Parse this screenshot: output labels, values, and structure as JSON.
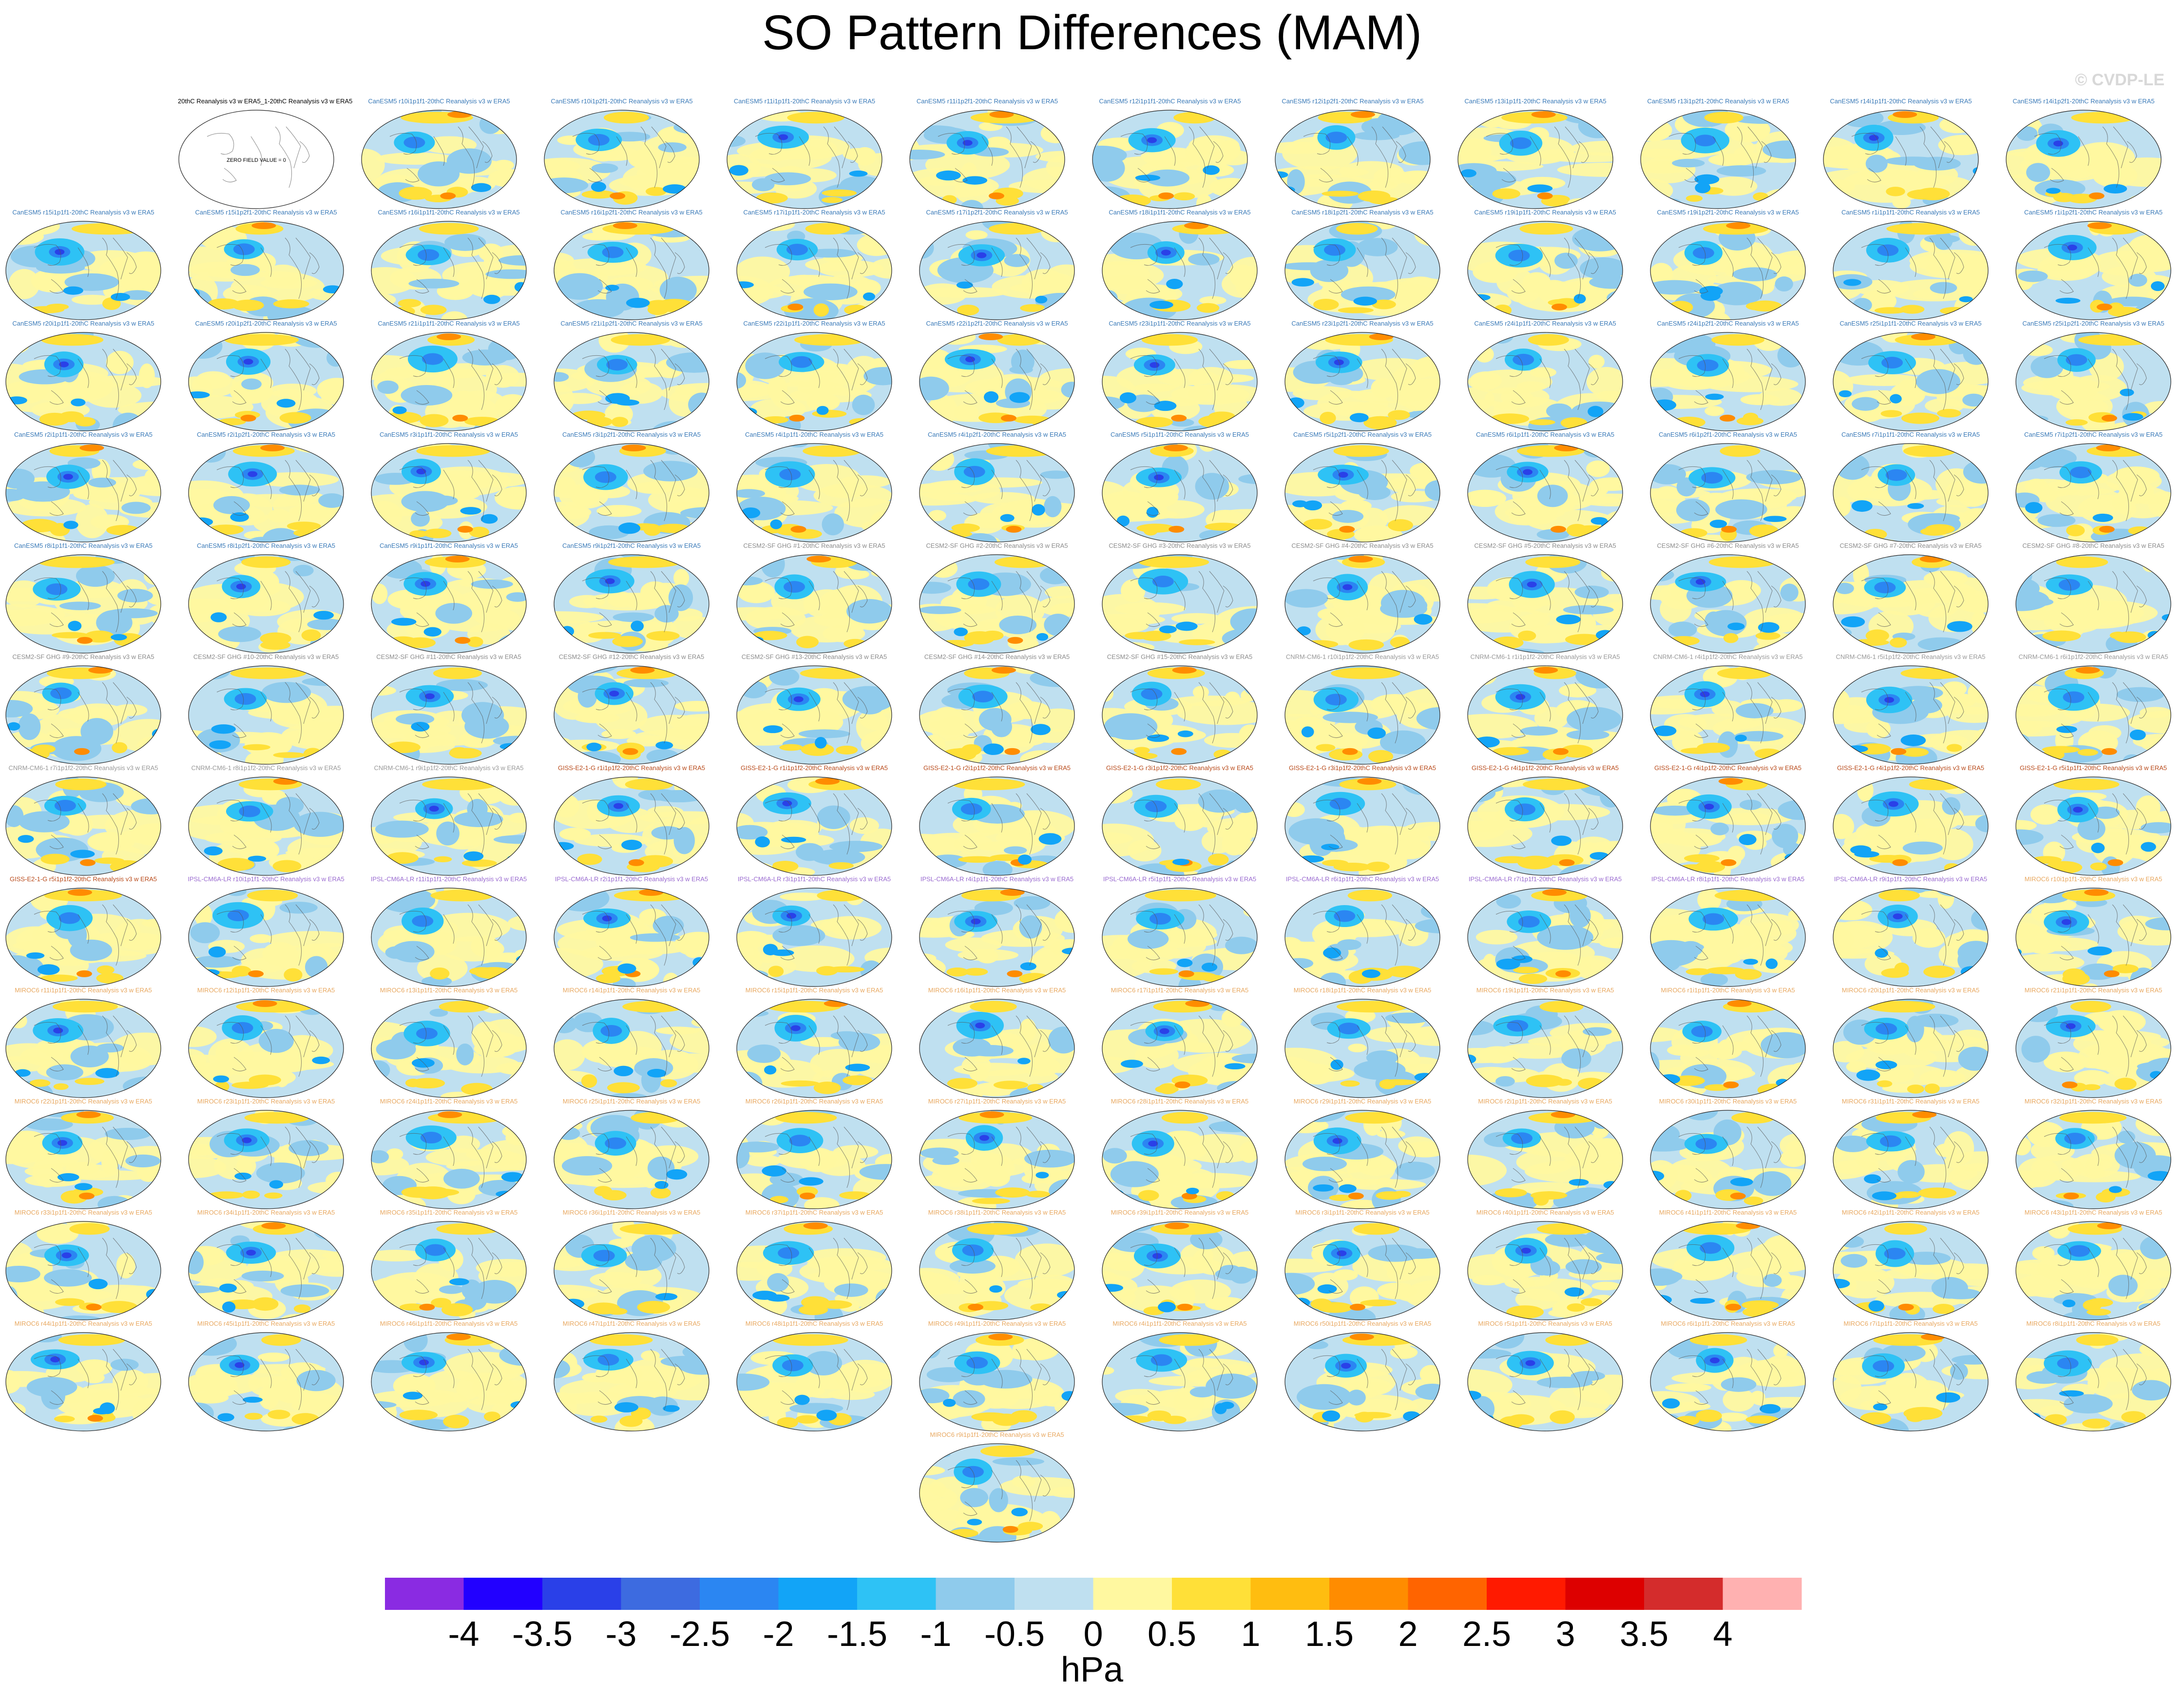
{
  "title": "SO Pattern Differences (MAM)",
  "watermark": "© CVDP-LE",
  "chart_data": {
    "type": "map-panels",
    "title": "SO Pattern Differences (MAM)",
    "units": "hPa",
    "colorbar": {
      "colors": [
        "#8a2be2",
        "#2200ff",
        "#2a40e8",
        "#3d6be0",
        "#2b86f2",
        "#12a4f7",
        "#2ec2f5",
        "#8fcbec",
        "#bfe0f0",
        "#fff8a0",
        "#ffe038",
        "#ffbd10",
        "#ff8c00",
        "#ff6400",
        "#ff1a00",
        "#dd0000",
        "#d42c2c",
        "#ffb1b1"
      ],
      "tick_labels": [
        "-4",
        "-3.5",
        "-3",
        "-2.5",
        "-2",
        "-1.5",
        "-1",
        "-0.5",
        "0",
        "0.5",
        "1",
        "1.5",
        "2",
        "2.5",
        "3",
        "3.5",
        "4"
      ]
    },
    "empty_panel_title": "20thC Reanalysis v3 w ERA5_1-20thC Reanalysis v3 w ERA5",
    "empty_panel_label": "ZERO FIELD VALUE = 0",
    "panels": [
      {
        "t": "CanESM5 r10i1p1f1-20thC Reanalysis v3 w ERA5",
        "g": "CanESM5",
        "s": 3
      },
      {
        "t": "CanESM5 r10i1p2f1-20thC Reanalysis v3 w ERA5",
        "g": "CanESM5",
        "s": 5
      },
      {
        "t": "CanESM5 r11i1p1f1-20thC Reanalysis v3 w ERA5",
        "g": "CanESM5",
        "s": 7
      },
      {
        "t": "CanESM5 r11i1p2f1-20thC Reanalysis v3 w ERA5",
        "g": "CanESM5",
        "s": 9
      },
      {
        "t": "CanESM5 r12i1p1f1-20thC Reanalysis v3 w ERA5",
        "g": "CanESM5",
        "s": 11
      },
      {
        "t": "CanESM5 r12i1p2f1-20thC Reanalysis v3 w ERA5",
        "g": "CanESM5",
        "s": 13
      },
      {
        "t": "CanESM5 r13i1p1f1-20thC Reanalysis v3 w ERA5",
        "g": "CanESM5",
        "s": 15
      },
      {
        "t": "CanESM5 r13i1p2f1-20thC Reanalysis v3 w ERA5",
        "g": "CanESM5",
        "s": 17
      },
      {
        "t": "CanESM5 r14i1p1f1-20thC Reanalysis v3 w ERA5",
        "g": "CanESM5",
        "s": 19
      },
      {
        "t": "CanESM5 r14i1p2f1-20thC Reanalysis v3 w ERA5",
        "g": "CanESM5",
        "s": 21
      },
      {
        "t": "CanESM5 r15i1p1f1-20thC Reanalysis v3 w ERA5",
        "g": "CanESM5",
        "s": 23
      },
      {
        "t": "CanESM5 r15i1p2f1-20thC Reanalysis v3 w ERA5",
        "g": "CanESM5",
        "s": 25
      },
      {
        "t": "CanESM5 r16i1p1f1-20thC Reanalysis v3 w ERA5",
        "g": "CanESM5",
        "s": 27
      },
      {
        "t": "CanESM5 r16i1p2f1-20thC Reanalysis v3 w ERA5",
        "g": "CanESM5",
        "s": 29
      },
      {
        "t": "CanESM5 r17i1p1f1-20thC Reanalysis v3 w ERA5",
        "g": "CanESM5",
        "s": 31
      },
      {
        "t": "CanESM5 r17i1p2f1-20thC Reanalysis v3 w ERA5",
        "g": "CanESM5",
        "s": 33
      },
      {
        "t": "CanESM5 r18i1p1f1-20thC Reanalysis v3 w ERA5",
        "g": "CanESM5",
        "s": 35
      },
      {
        "t": "CanESM5 r18i1p2f1-20thC Reanalysis v3 w ERA5",
        "g": "CanESM5",
        "s": 37
      },
      {
        "t": "CanESM5 r19i1p1f1-20thC Reanalysis v3 w ERA5",
        "g": "CanESM5",
        "s": 39
      },
      {
        "t": "CanESM5 r19i1p2f1-20thC Reanalysis v3 w ERA5",
        "g": "CanESM5",
        "s": 41
      },
      {
        "t": "CanESM5 r1i1p1f1-20thC Reanalysis v3 w ERA5",
        "g": "CanESM5",
        "s": 43
      },
      {
        "t": "CanESM5 r1i1p2f1-20thC Reanalysis v3 w ERA5",
        "g": "CanESM5",
        "s": 45
      },
      {
        "t": "CanESM5 r20i1p1f1-20thC Reanalysis v3 w ERA5",
        "g": "CanESM5",
        "s": 47
      },
      {
        "t": "CanESM5 r20i1p2f1-20thC Reanalysis v3 w ERA5",
        "g": "CanESM5",
        "s": 49
      },
      {
        "t": "CanESM5 r21i1p1f1-20thC Reanalysis v3 w ERA5",
        "g": "CanESM5",
        "s": 51
      },
      {
        "t": "CanESM5 r21i1p2f1-20thC Reanalysis v3 w ERA5",
        "g": "CanESM5",
        "s": 53
      },
      {
        "t": "CanESM5 r22i1p1f1-20thC Reanalysis v3 w ERA5",
        "g": "CanESM5",
        "s": 55
      },
      {
        "t": "CanESM5 r22i1p2f1-20thC Reanalysis v3 w ERA5",
        "g": "CanESM5",
        "s": 57
      },
      {
        "t": "CanESM5 r23i1p1f1-20thC Reanalysis v3 w ERA5",
        "g": "CanESM5",
        "s": 59
      },
      {
        "t": "CanESM5 r23i1p2f1-20thC Reanalysis v3 w ERA5",
        "g": "CanESM5",
        "s": 61
      },
      {
        "t": "CanESM5 r24i1p1f1-20thC Reanalysis v3 w ERA5",
        "g": "CanESM5",
        "s": 63
      },
      {
        "t": "CanESM5 r24i1p2f1-20thC Reanalysis v3 w ERA5",
        "g": "CanESM5",
        "s": 65
      },
      {
        "t": "CanESM5 r25i1p1f1-20thC Reanalysis v3 w ERA5",
        "g": "CanESM5",
        "s": 67
      },
      {
        "t": "CanESM5 r25i1p2f1-20thC Reanalysis v3 w ERA5",
        "g": "CanESM5",
        "s": 69
      },
      {
        "t": "CanESM5 r2i1p1f1-20thC Reanalysis v3 w ERA5",
        "g": "CanESM5",
        "s": 71
      },
      {
        "t": "CanESM5 r2i1p2f1-20thC Reanalysis v3 w ERA5",
        "g": "CanESM5",
        "s": 73
      },
      {
        "t": "CanESM5 r3i1p1f1-20thC Reanalysis v3 w ERA5",
        "g": "CanESM5",
        "s": 75
      },
      {
        "t": "CanESM5 r3i1p2f1-20thC Reanalysis v3 w ERA5",
        "g": "CanESM5",
        "s": 77
      },
      {
        "t": "CanESM5 r4i1p1f1-20thC Reanalysis v3 w ERA5",
        "g": "CanESM5",
        "s": 79
      },
      {
        "t": "CanESM5 r4i1p2f1-20thC Reanalysis v3 w ERA5",
        "g": "CanESM5",
        "s": 81
      },
      {
        "t": "CanESM5 r5i1p1f1-20thC Reanalysis v3 w ERA5",
        "g": "CanESM5",
        "s": 83
      },
      {
        "t": "CanESM5 r5i1p2f1-20thC Reanalysis v3 w ERA5",
        "g": "CanESM5",
        "s": 85
      },
      {
        "t": "CanESM5 r6i1p1f1-20thC Reanalysis v3 w ERA5",
        "g": "CanESM5",
        "s": 87
      },
      {
        "t": "CanESM5 r6i1p2f1-20thC Reanalysis v3 w ERA5",
        "g": "CanESM5",
        "s": 89
      },
      {
        "t": "CanESM5 r7i1p1f1-20thC Reanalysis v3 w ERA5",
        "g": "CanESM5",
        "s": 91
      },
      {
        "t": "CanESM5 r7i1p2f1-20thC Reanalysis v3 w ERA5",
        "g": "CanESM5",
        "s": 93
      },
      {
        "t": "CanESM5 r8i1p1f1-20thC Reanalysis v3 w ERA5",
        "g": "CanESM5",
        "s": 95
      },
      {
        "t": "CanESM5 r8i1p2f1-20thC Reanalysis v3 w ERA5",
        "g": "CanESM5",
        "s": 97
      },
      {
        "t": "CanESM5 r9i1p1f1-20thC Reanalysis v3 w ERA5",
        "g": "CanESM5",
        "s": 99
      },
      {
        "t": "CanESM5 r9i1p2f1-20thC Reanalysis v3 w ERA5",
        "g": "CanESM5",
        "s": 101
      },
      {
        "t": "CESM2-SF GHG #1-20thC Reanalysis v3 w ERA5",
        "g": "CESM2",
        "s": 103
      },
      {
        "t": "CESM2-SF GHG #2-20thC Reanalysis v3 w ERA5",
        "g": "CESM2",
        "s": 105
      },
      {
        "t": "CESM2-SF GHG #3-20thC Reanalysis v3 w ERA5",
        "g": "CESM2",
        "s": 107
      },
      {
        "t": "CESM2-SF GHG #4-20thC Reanalysis v3 w ERA5",
        "g": "CESM2",
        "s": 109
      },
      {
        "t": "CESM2-SF GHG #5-20thC Reanalysis v3 w ERA5",
        "g": "CESM2",
        "s": 111
      },
      {
        "t": "CESM2-SF GHG #6-20thC Reanalysis v3 w ERA5",
        "g": "CESM2",
        "s": 113
      },
      {
        "t": "CESM2-SF GHG #7-20thC Reanalysis v3 w ERA5",
        "g": "CESM2",
        "s": 115
      },
      {
        "t": "CESM2-SF GHG #8-20thC Reanalysis v3 w ERA5",
        "g": "CESM2",
        "s": 117
      },
      {
        "t": "CESM2-SF GHG #9-20thC Reanalysis v3 w ERA5",
        "g": "CESM2",
        "s": 119
      },
      {
        "t": "CESM2-SF GHG #10-20thC Reanalysis v3 w ERA5",
        "g": "CESM2",
        "s": 121
      },
      {
        "t": "CESM2-SF GHG #11-20thC Reanalysis v3 w ERA5",
        "g": "CESM2",
        "s": 123
      },
      {
        "t": "CESM2-SF GHG #12-20thC Reanalysis v3 w ERA5",
        "g": "CESM2",
        "s": 125
      },
      {
        "t": "CESM2-SF GHG #13-20thC Reanalysis v3 w ERA5",
        "g": "CESM2",
        "s": 127
      },
      {
        "t": "CESM2-SF GHG #14-20thC Reanalysis v3 w ERA5",
        "g": "CESM2",
        "s": 129
      },
      {
        "t": "CESM2-SF GHG #15-20thC Reanalysis v3 w ERA5",
        "g": "CESM2",
        "s": 131
      },
      {
        "t": "CNRM-CM6-1 r10i1p1f2-20thC Reanalysis v3 w ERA5",
        "g": "CNRM",
        "s": 133
      },
      {
        "t": "CNRM-CM6-1 r1i1p1f2-20thC Reanalysis v3 w ERA5",
        "g": "CNRM",
        "s": 135
      },
      {
        "t": "CNRM-CM6-1 r4i1p1f2-20thC Reanalysis v3 w ERA5",
        "g": "CNRM",
        "s": 137
      },
      {
        "t": "CNRM-CM6-1 r5i1p1f2-20thC Reanalysis v3 w ERA5",
        "g": "CNRM",
        "s": 139
      },
      {
        "t": "CNRM-CM6-1 r6i1p1f2-20thC Reanalysis v3 w ERA5",
        "g": "CNRM",
        "s": 141
      },
      {
        "t": "CNRM-CM6-1 r7i1p1f2-20thC Reanalysis v3 w ERA5",
        "g": "CNRM",
        "s": 143
      },
      {
        "t": "CNRM-CM6-1 r8i1p1f2-20thC Reanalysis v3 w ERA5",
        "g": "CNRM",
        "s": 145
      },
      {
        "t": "CNRM-CM6-1 r9i1p1f2-20thC Reanalysis v3 w ERA5",
        "g": "CNRM",
        "s": 147
      },
      {
        "t": "GISS-E2-1-G r1i1p1f2-20thC Reanalysis v3 w ERA5",
        "g": "GISS",
        "s": 149
      },
      {
        "t": "GISS-E2-1-G r1i1p1f2-20thC Reanalysis v3 w ERA5",
        "g": "GISS",
        "s": 151
      },
      {
        "t": "GISS-E2-1-G r2i1p1f2-20thC Reanalysis v3 w ERA5",
        "g": "GISS",
        "s": 153
      },
      {
        "t": "GISS-E2-1-G r3i1p1f2-20thC Reanalysis v3 w ERA5",
        "g": "GISS",
        "s": 155
      },
      {
        "t": "GISS-E2-1-G r3i1p1f2-20thC Reanalysis v3 w ERA5",
        "g": "GISS",
        "s": 157
      },
      {
        "t": "GISS-E2-1-G r4i1p1f2-20thC Reanalysis v3 w ERA5",
        "g": "GISS",
        "s": 159
      },
      {
        "t": "GISS-E2-1-G r4i1p1f2-20thC Reanalysis v3 w ERA5",
        "g": "GISS",
        "s": 161
      },
      {
        "t": "GISS-E2-1-G r4i1p1f2-20thC Reanalysis v3 w ERA5",
        "g": "GISS",
        "s": 163
      },
      {
        "t": "GISS-E2-1-G r5i1p1f1-20thC Reanalysis v3 w ERA5",
        "g": "GISS",
        "s": 165
      },
      {
        "t": "GISS-E2-1-G r5i1p1f2-20thC Reanalysis v3 w ERA5",
        "g": "GISS",
        "s": 167
      },
      {
        "t": "IPSL-CM6A-LR r10i1p1f1-20thC Reanalysis v3 w ERA5",
        "g": "IPSL",
        "s": 169
      },
      {
        "t": "IPSL-CM6A-LR r11i1p1f1-20thC Reanalysis v3 w ERA5",
        "g": "IPSL",
        "s": 171
      },
      {
        "t": "IPSL-CM6A-LR r2i1p1f1-20thC Reanalysis v3 w ERA5",
        "g": "IPSL",
        "s": 173
      },
      {
        "t": "IPSL-CM6A-LR r3i1p1f1-20thC Reanalysis v3 w ERA5",
        "g": "IPSL",
        "s": 175
      },
      {
        "t": "IPSL-CM6A-LR r4i1p1f1-20thC Reanalysis v3 w ERA5",
        "g": "IPSL",
        "s": 177
      },
      {
        "t": "IPSL-CM6A-LR r5i1p1f1-20thC Reanalysis v3 w ERA5",
        "g": "IPSL",
        "s": 179
      },
      {
        "t": "IPSL-CM6A-LR r6i1p1f1-20thC Reanalysis v3 w ERA5",
        "g": "IPSL",
        "s": 181
      },
      {
        "t": "IPSL-CM6A-LR r7i1p1f1-20thC Reanalysis v3 w ERA5",
        "g": "IPSL",
        "s": 183
      },
      {
        "t": "IPSL-CM6A-LR r8i1p1f1-20thC Reanalysis v3 w ERA5",
        "g": "IPSL",
        "s": 185
      },
      {
        "t": "IPSL-CM6A-LR r9i1p1f1-20thC Reanalysis v3 w ERA5",
        "g": "IPSL",
        "s": 187
      },
      {
        "t": "MIROC6 r10i1p1f1-20thC Reanalysis v3 w ERA5",
        "g": "MIROC6",
        "s": 189
      },
      {
        "t": "MIROC6 r11i1p1f1-20thC Reanalysis v3 w ERA5",
        "g": "MIROC6",
        "s": 191
      },
      {
        "t": "MIROC6 r12i1p1f1-20thC Reanalysis v3 w ERA5",
        "g": "MIROC6",
        "s": 193
      },
      {
        "t": "MIROC6 r13i1p1f1-20thC Reanalysis v3 w ERA5",
        "g": "MIROC6",
        "s": 195
      },
      {
        "t": "MIROC6 r14i1p1f1-20thC Reanalysis v3 w ERA5",
        "g": "MIROC6",
        "s": 197
      },
      {
        "t": "MIROC6 r15i1p1f1-20thC Reanalysis v3 w ERA5",
        "g": "MIROC6",
        "s": 199
      },
      {
        "t": "MIROC6 r16i1p1f1-20thC Reanalysis v3 w ERA5",
        "g": "MIROC6",
        "s": 201
      },
      {
        "t": "MIROC6 r17i1p1f1-20thC Reanalysis v3 w ERA5",
        "g": "MIROC6",
        "s": 203
      },
      {
        "t": "MIROC6 r18i1p1f1-20thC Reanalysis v3 w ERA5",
        "g": "MIROC6",
        "s": 205
      },
      {
        "t": "MIROC6 r19i1p1f1-20thC Reanalysis v3 w ERA5",
        "g": "MIROC6",
        "s": 207
      },
      {
        "t": "MIROC6 r1i1p1f1-20thC Reanalysis v3 w ERA5",
        "g": "MIROC6",
        "s": 209
      },
      {
        "t": "MIROC6 r20i1p1f1-20thC Reanalysis v3 w ERA5",
        "g": "MIROC6",
        "s": 211
      },
      {
        "t": "MIROC6 r21i1p1f1-20thC Reanalysis v3 w ERA5",
        "g": "MIROC6",
        "s": 213
      },
      {
        "t": "MIROC6 r22i1p1f1-20thC Reanalysis v3 w ERA5",
        "g": "MIROC6",
        "s": 215
      },
      {
        "t": "MIROC6 r23i1p1f1-20thC Reanalysis v3 w ERA5",
        "g": "MIROC6",
        "s": 217
      },
      {
        "t": "MIROC6 r24i1p1f1-20thC Reanalysis v3 w ERA5",
        "g": "MIROC6",
        "s": 219
      },
      {
        "t": "MIROC6 r25i1p1f1-20thC Reanalysis v3 w ERA5",
        "g": "MIROC6",
        "s": 221
      },
      {
        "t": "MIROC6 r26i1p1f1-20thC Reanalysis v3 w ERA5",
        "g": "MIROC6",
        "s": 223
      },
      {
        "t": "MIROC6 r27i1p1f1-20thC Reanalysis v3 w ERA5",
        "g": "MIROC6",
        "s": 225
      },
      {
        "t": "MIROC6 r28i1p1f1-20thC Reanalysis v3 w ERA5",
        "g": "MIROC6",
        "s": 227
      },
      {
        "t": "MIROC6 r29i1p1f1-20thC Reanalysis v3 w ERA5",
        "g": "MIROC6",
        "s": 229
      },
      {
        "t": "MIROC6 r2i1p1f1-20thC Reanalysis v3 w ERA5",
        "g": "MIROC6",
        "s": 231
      },
      {
        "t": "MIROC6 r30i1p1f1-20thC Reanalysis v3 w ERA5",
        "g": "MIROC6",
        "s": 233
      },
      {
        "t": "MIROC6 r31i1p1f1-20thC Reanalysis v3 w ERA5",
        "g": "MIROC6",
        "s": 235
      },
      {
        "t": "MIROC6 r32i1p1f1-20thC Reanalysis v3 w ERA5",
        "g": "MIROC6",
        "s": 237
      },
      {
        "t": "MIROC6 r33i1p1f1-20thC Reanalysis v3 w ERA5",
        "g": "MIROC6",
        "s": 239
      },
      {
        "t": "MIROC6 r34i1p1f1-20thC Reanalysis v3 w ERA5",
        "g": "MIROC6",
        "s": 241
      },
      {
        "t": "MIROC6 r35i1p1f1-20thC Reanalysis v3 w ERA5",
        "g": "MIROC6",
        "s": 243
      },
      {
        "t": "MIROC6 r36i1p1f1-20thC Reanalysis v3 w ERA5",
        "g": "MIROC6",
        "s": 245
      },
      {
        "t": "MIROC6 r37i1p1f1-20thC Reanalysis v3 w ERA5",
        "g": "MIROC6",
        "s": 247
      },
      {
        "t": "MIROC6 r38i1p1f1-20thC Reanalysis v3 w ERA5",
        "g": "MIROC6",
        "s": 249
      },
      {
        "t": "MIROC6 r39i1p1f1-20thC Reanalysis v3 w ERA5",
        "g": "MIROC6",
        "s": 251
      },
      {
        "t": "MIROC6 r3i1p1f1-20thC Reanalysis v3 w ERA5",
        "g": "MIROC6",
        "s": 253
      },
      {
        "t": "MIROC6 r40i1p1f1-20thC Reanalysis v3 w ERA5",
        "g": "MIROC6",
        "s": 255
      },
      {
        "t": "MIROC6 r41i1p1f1-20thC Reanalysis v3 w ERA5",
        "g": "MIROC6",
        "s": 257
      },
      {
        "t": "MIROC6 r42i1p1f1-20thC Reanalysis v3 w ERA5",
        "g": "MIROC6",
        "s": 259
      },
      {
        "t": "MIROC6 r43i1p1f1-20thC Reanalysis v3 w ERA5",
        "g": "MIROC6",
        "s": 261
      },
      {
        "t": "MIROC6 r44i1p1f1-20thC Reanalysis v3 w ERA5",
        "g": "MIROC6",
        "s": 263
      },
      {
        "t": "MIROC6 r45i1p1f1-20thC Reanalysis v3 w ERA5",
        "g": "MIROC6",
        "s": 265
      },
      {
        "t": "MIROC6 r46i1p1f1-20thC Reanalysis v3 w ERA5",
        "g": "MIROC6",
        "s": 267
      },
      {
        "t": "MIROC6 r47i1p1f1-20thC Reanalysis v3 w ERA5",
        "g": "MIROC6",
        "s": 269
      },
      {
        "t": "MIROC6 r48i1p1f1-20thC Reanalysis v3 w ERA5",
        "g": "MIROC6",
        "s": 271
      },
      {
        "t": "MIROC6 r49i1p1f1-20thC Reanalysis v3 w ERA5",
        "g": "MIROC6",
        "s": 273
      },
      {
        "t": "MIROC6 r4i1p1f1-20thC Reanalysis v3 w ERA5",
        "g": "MIROC6",
        "s": 275
      },
      {
        "t": "MIROC6 r50i1p1f1-20thC Reanalysis v3 w ERA5",
        "g": "MIROC6",
        "s": 277
      },
      {
        "t": "MIROC6 r5i1p1f1-20thC Reanalysis v3 w ERA5",
        "g": "MIROC6",
        "s": 279
      },
      {
        "t": "MIROC6 r6i1p1f1-20thC Reanalysis v3 w ERA5",
        "g": "MIROC6",
        "s": 281
      },
      {
        "t": "MIROC6 r7i1p1f1-20thC Reanalysis v3 w ERA5",
        "g": "MIROC6",
        "s": 283
      },
      {
        "t": "MIROC6 r8i1p1f1-20thC Reanalysis v3 w ERA5",
        "g": "MIROC6",
        "s": 285
      },
      {
        "t": "MIROC6 r9i1p1f1-20thC Reanalysis v3 w ERA5",
        "g": "MIROC6",
        "s": 287
      }
    ],
    "group_colors": {
      "CanESM5": "#3a7ab8",
      "CESM2": "#8c8c8c",
      "CNRM": "#999999",
      "GISS": "#b84a1a",
      "IPSL": "#9a6bd0",
      "MIROC6": "#e8a860"
    }
  }
}
